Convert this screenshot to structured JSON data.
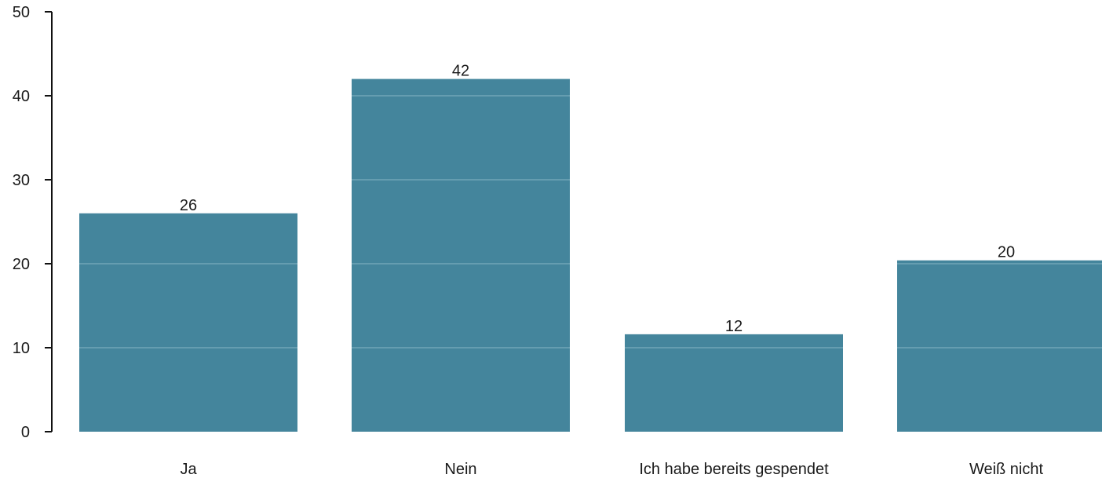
{
  "chart_data": {
    "type": "bar",
    "categories": [
      "Ja",
      "Nein",
      "Ich habe bereits gespendet",
      "Weiß nicht"
    ],
    "values": [
      26,
      42,
      12,
      20
    ],
    "plotted_values": [
      26,
      42,
      11.6,
      20.4
    ],
    "data_labels": [
      "26",
      "42",
      "12",
      "20"
    ],
    "title": "",
    "xlabel": "",
    "ylabel": "",
    "ylim": [
      0,
      50
    ],
    "yticks": [
      "0",
      "10",
      "20",
      "30",
      "40",
      "50"
    ],
    "grid": "horizontal lines visible only over bars",
    "legend": "none",
    "colors": {
      "bar": "#44859c",
      "grid": "#7fb0c0",
      "axis": "#111111"
    }
  }
}
